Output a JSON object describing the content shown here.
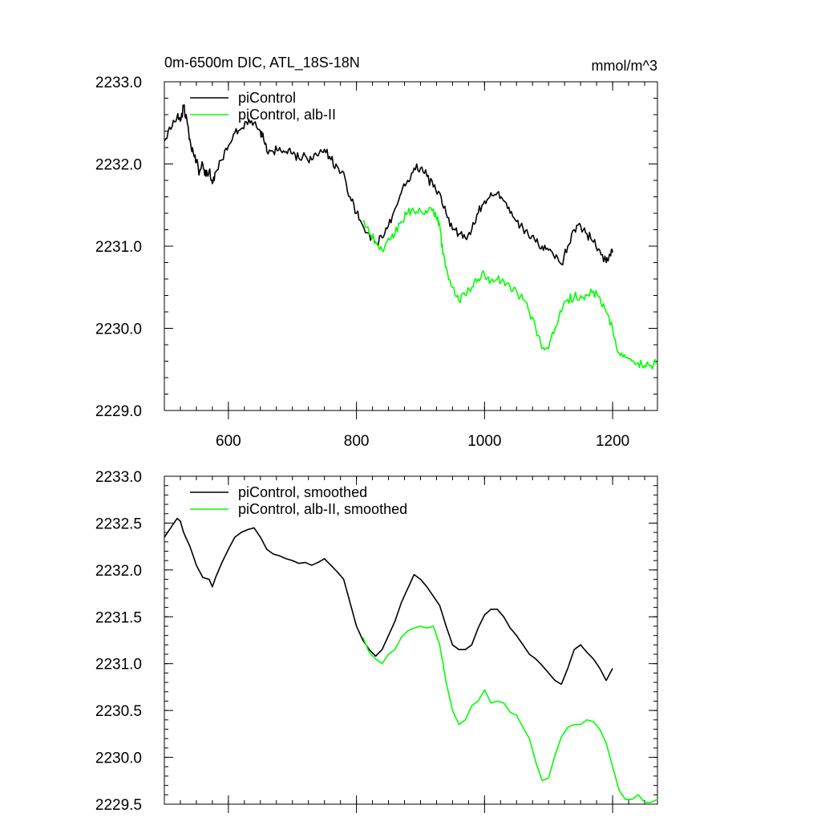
{
  "chart_data": [
    {
      "type": "line",
      "title": "0m-6500m DIC, ATL_18S-18N",
      "units": "mmol/m^3",
      "xlim": [
        500,
        1270
      ],
      "ylim": [
        2229.0,
        2233.0
      ],
      "xticks": [
        600,
        800,
        1000,
        1200
      ],
      "xtick_labels": [
        "600",
        "800",
        "1000",
        "1200"
      ],
      "yticks": [
        2229.0,
        2230.0,
        2231.0,
        2232.0,
        2233.0
      ],
      "ytick_labels": [
        "2229.0",
        "2230.0",
        "2231.0",
        "2232.0",
        "2233.0"
      ],
      "legend_position": "top-left",
      "series": [
        {
          "name": "piControl",
          "color": "#000000",
          "points": [
            [
              500,
              2232.28
            ],
            [
              510,
              2232.42
            ],
            [
              520,
              2232.58
            ],
            [
              525,
              2232.52
            ],
            [
              530,
              2232.7
            ],
            [
              535,
              2232.55
            ],
            [
              540,
              2232.3
            ],
            [
              545,
              2232.15
            ],
            [
              550,
              2232.02
            ],
            [
              555,
              2231.9
            ],
            [
              560,
              2232.0
            ],
            [
              565,
              2231.85
            ],
            [
              570,
              2231.92
            ],
            [
              575,
              2231.76
            ],
            [
              580,
              2231.9
            ],
            [
              590,
              2232.05
            ],
            [
              600,
              2232.22
            ],
            [
              610,
              2232.38
            ],
            [
              620,
              2232.43
            ],
            [
              630,
              2232.48
            ],
            [
              640,
              2232.5
            ],
            [
              650,
              2232.4
            ],
            [
              655,
              2232.3
            ],
            [
              660,
              2232.15
            ],
            [
              670,
              2232.15
            ],
            [
              680,
              2232.2
            ],
            [
              690,
              2232.15
            ],
            [
              700,
              2232.12
            ],
            [
              710,
              2232.07
            ],
            [
              720,
              2232.1
            ],
            [
              730,
              2232.05
            ],
            [
              740,
              2232.1
            ],
            [
              750,
              2232.18
            ],
            [
              760,
              2232.05
            ],
            [
              770,
              2231.97
            ],
            [
              780,
              2231.9
            ],
            [
              790,
              2231.6
            ],
            [
              800,
              2231.4
            ],
            [
              810,
              2231.25
            ],
            [
              820,
              2231.15
            ],
            [
              830,
              2231.05
            ],
            [
              840,
              2231.1
            ],
            [
              850,
              2231.25
            ],
            [
              860,
              2231.45
            ],
            [
              870,
              2231.65
            ],
            [
              880,
              2231.8
            ],
            [
              890,
              2231.95
            ],
            [
              900,
              2231.95
            ],
            [
              910,
              2231.85
            ],
            [
              920,
              2231.72
            ],
            [
              930,
              2231.65
            ],
            [
              940,
              2231.4
            ],
            [
              950,
              2231.2
            ],
            [
              960,
              2231.15
            ],
            [
              970,
              2231.1
            ],
            [
              980,
              2231.2
            ],
            [
              990,
              2231.4
            ],
            [
              1000,
              2231.55
            ],
            [
              1010,
              2231.65
            ],
            [
              1020,
              2231.65
            ],
            [
              1030,
              2231.55
            ],
            [
              1040,
              2231.4
            ],
            [
              1050,
              2231.3
            ],
            [
              1060,
              2231.22
            ],
            [
              1070,
              2231.1
            ],
            [
              1080,
              2231.05
            ],
            [
              1090,
              2231.0
            ],
            [
              1100,
              2230.95
            ],
            [
              1110,
              2230.85
            ],
            [
              1120,
              2230.78
            ],
            [
              1130,
              2231.0
            ],
            [
              1140,
              2231.2
            ],
            [
              1150,
              2231.25
            ],
            [
              1160,
              2231.15
            ],
            [
              1170,
              2231.05
            ],
            [
              1180,
              2230.95
            ],
            [
              1190,
              2230.8
            ],
            [
              1195,
              2230.9
            ],
            [
              1200,
              2230.92
            ]
          ]
        },
        {
          "name": "piControl, alb-II",
          "color": "#00ff00",
          "points": [
            [
              810,
              2231.3
            ],
            [
              820,
              2231.15
            ],
            [
              830,
              2231.05
            ],
            [
              840,
              2230.95
            ],
            [
              850,
              2231.1
            ],
            [
              860,
              2231.15
            ],
            [
              870,
              2231.3
            ],
            [
              880,
              2231.4
            ],
            [
              890,
              2231.42
            ],
            [
              900,
              2231.43
            ],
            [
              910,
              2231.4
            ],
            [
              920,
              2231.45
            ],
            [
              925,
              2231.35
            ],
            [
              930,
              2231.25
            ],
            [
              935,
              2230.9
            ],
            [
              940,
              2230.75
            ],
            [
              950,
              2230.5
            ],
            [
              960,
              2230.33
            ],
            [
              970,
              2230.4
            ],
            [
              980,
              2230.5
            ],
            [
              990,
              2230.6
            ],
            [
              1000,
              2230.65
            ],
            [
              1010,
              2230.58
            ],
            [
              1020,
              2230.6
            ],
            [
              1030,
              2230.58
            ],
            [
              1040,
              2230.5
            ],
            [
              1050,
              2230.45
            ],
            [
              1060,
              2230.35
            ],
            [
              1070,
              2230.2
            ],
            [
              1080,
              2230.0
            ],
            [
              1090,
              2229.75
            ],
            [
              1100,
              2229.75
            ],
            [
              1110,
              2230.0
            ],
            [
              1120,
              2230.2
            ],
            [
              1130,
              2230.35
            ],
            [
              1140,
              2230.38
            ],
            [
              1150,
              2230.4
            ],
            [
              1160,
              2230.4
            ],
            [
              1170,
              2230.45
            ],
            [
              1180,
              2230.38
            ],
            [
              1190,
              2230.2
            ],
            [
              1200,
              2230.0
            ],
            [
              1210,
              2229.7
            ],
            [
              1220,
              2229.65
            ],
            [
              1230,
              2229.6
            ],
            [
              1240,
              2229.58
            ],
            [
              1250,
              2229.55
            ],
            [
              1260,
              2229.55
            ],
            [
              1270,
              2229.58
            ]
          ]
        }
      ]
    },
    {
      "type": "line",
      "xlim": [
        500,
        1270
      ],
      "ylim": [
        2229.5,
        2233.0
      ],
      "xticks": [
        600,
        800,
        1000,
        1200
      ],
      "yticks": [
        2229.5,
        2230.0,
        2230.5,
        2231.0,
        2231.5,
        2232.0,
        2232.5,
        2233.0
      ],
      "ytick_labels": [
        "2229.5",
        "2230.0",
        "2230.5",
        "2231.0",
        "2231.5",
        "2232.0",
        "2232.5",
        "2233.0"
      ],
      "legend_position": "top-left",
      "series": [
        {
          "name": "piControl, smoothed",
          "color": "#000000",
          "points": [
            [
              500,
              2232.35
            ],
            [
              510,
              2232.45
            ],
            [
              520,
              2232.55
            ],
            [
              525,
              2232.52
            ],
            [
              530,
              2232.4
            ],
            [
              540,
              2232.25
            ],
            [
              550,
              2232.05
            ],
            [
              560,
              2231.92
            ],
            [
              570,
              2231.9
            ],
            [
              575,
              2231.82
            ],
            [
              580,
              2231.92
            ],
            [
              590,
              2232.08
            ],
            [
              600,
              2232.22
            ],
            [
              610,
              2232.35
            ],
            [
              620,
              2232.4
            ],
            [
              630,
              2232.43
            ],
            [
              640,
              2232.45
            ],
            [
              650,
              2232.35
            ],
            [
              660,
              2232.22
            ],
            [
              670,
              2232.17
            ],
            [
              680,
              2232.15
            ],
            [
              690,
              2232.12
            ],
            [
              700,
              2232.1
            ],
            [
              710,
              2232.07
            ],
            [
              720,
              2232.08
            ],
            [
              730,
              2232.05
            ],
            [
              740,
              2232.08
            ],
            [
              750,
              2232.12
            ],
            [
              760,
              2232.05
            ],
            [
              770,
              2231.98
            ],
            [
              780,
              2231.9
            ],
            [
              790,
              2231.65
            ],
            [
              800,
              2231.4
            ],
            [
              810,
              2231.25
            ],
            [
              820,
              2231.15
            ],
            [
              830,
              2231.08
            ],
            [
              840,
              2231.15
            ],
            [
              850,
              2231.3
            ],
            [
              860,
              2231.45
            ],
            [
              870,
              2231.65
            ],
            [
              880,
              2231.8
            ],
            [
              890,
              2231.95
            ],
            [
              900,
              2231.9
            ],
            [
              910,
              2231.82
            ],
            [
              920,
              2231.72
            ],
            [
              930,
              2231.62
            ],
            [
              940,
              2231.4
            ],
            [
              950,
              2231.2
            ],
            [
              960,
              2231.15
            ],
            [
              970,
              2231.15
            ],
            [
              980,
              2231.2
            ],
            [
              990,
              2231.38
            ],
            [
              1000,
              2231.52
            ],
            [
              1010,
              2231.58
            ],
            [
              1020,
              2231.58
            ],
            [
              1030,
              2231.5
            ],
            [
              1040,
              2231.38
            ],
            [
              1050,
              2231.3
            ],
            [
              1060,
              2231.2
            ],
            [
              1070,
              2231.1
            ],
            [
              1080,
              2231.05
            ],
            [
              1090,
              2230.98
            ],
            [
              1100,
              2230.9
            ],
            [
              1110,
              2230.82
            ],
            [
              1120,
              2230.78
            ],
            [
              1130,
              2230.95
            ],
            [
              1140,
              2231.15
            ],
            [
              1150,
              2231.2
            ],
            [
              1160,
              2231.12
            ],
            [
              1170,
              2231.05
            ],
            [
              1180,
              2230.95
            ],
            [
              1190,
              2230.82
            ],
            [
              1200,
              2230.95
            ]
          ]
        },
        {
          "name": "piControl, alb-II, smoothed",
          "color": "#00ff00",
          "points": [
            [
              810,
              2231.28
            ],
            [
              820,
              2231.12
            ],
            [
              830,
              2231.05
            ],
            [
              840,
              2231.0
            ],
            [
              850,
              2231.1
            ],
            [
              860,
              2231.15
            ],
            [
              870,
              2231.28
            ],
            [
              880,
              2231.35
            ],
            [
              890,
              2231.38
            ],
            [
              900,
              2231.4
            ],
            [
              910,
              2231.38
            ],
            [
              920,
              2231.4
            ],
            [
              930,
              2231.2
            ],
            [
              940,
              2230.8
            ],
            [
              950,
              2230.5
            ],
            [
              960,
              2230.35
            ],
            [
              970,
              2230.4
            ],
            [
              980,
              2230.55
            ],
            [
              990,
              2230.6
            ],
            [
              1000,
              2230.72
            ],
            [
              1010,
              2230.58
            ],
            [
              1020,
              2230.6
            ],
            [
              1030,
              2230.58
            ],
            [
              1040,
              2230.48
            ],
            [
              1050,
              2230.45
            ],
            [
              1060,
              2230.32
            ],
            [
              1070,
              2230.2
            ],
            [
              1080,
              2229.95
            ],
            [
              1090,
              2229.75
            ],
            [
              1100,
              2229.78
            ],
            [
              1110,
              2230.02
            ],
            [
              1120,
              2230.22
            ],
            [
              1130,
              2230.32
            ],
            [
              1140,
              2230.35
            ],
            [
              1150,
              2230.35
            ],
            [
              1160,
              2230.4
            ],
            [
              1170,
              2230.38
            ],
            [
              1180,
              2230.3
            ],
            [
              1190,
              2230.15
            ],
            [
              1200,
              2229.9
            ],
            [
              1210,
              2229.65
            ],
            [
              1220,
              2229.55
            ],
            [
              1230,
              2229.55
            ],
            [
              1240,
              2229.6
            ],
            [
              1250,
              2229.52
            ],
            [
              1260,
              2229.52
            ],
            [
              1270,
              2229.55
            ]
          ]
        }
      ]
    }
  ]
}
